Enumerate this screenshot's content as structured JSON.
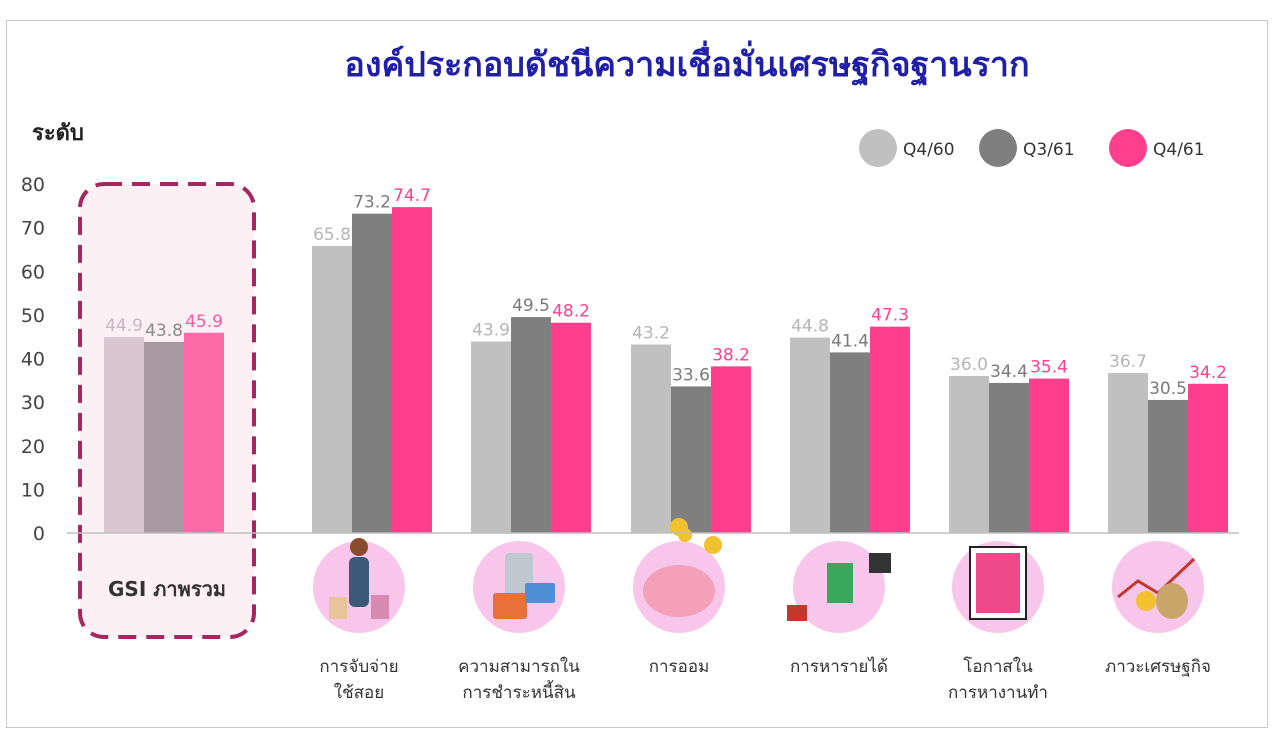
{
  "chart_data": {
    "type": "bar",
    "title": "องค์ประกอบดัชนีความเชื่อมั่นเศรษฐกิจฐานราก",
    "ylabel": "ระดับ",
    "xlabel": "",
    "ylim": [
      0,
      80
    ],
    "yticks": [
      0,
      10,
      20,
      30,
      40,
      50,
      60,
      70,
      80
    ],
    "grid": false,
    "legend_placement": "top-right",
    "categories": [
      [
        "GSI ภาพรวม"
      ],
      [
        "การจับจ่าย",
        "ใช้สอย"
      ],
      [
        "ความสามารถใน",
        "การชำระหนี้สิน"
      ],
      [
        "การออม"
      ],
      [
        "การหารายได้"
      ],
      [
        "โอกาสใน",
        "การหางานทำ"
      ],
      [
        "ภาวะเศรษฐกิจ"
      ]
    ],
    "series": [
      {
        "name": "Q4/60",
        "color": "#c0c0c0",
        "values": [
          44.9,
          65.8,
          43.9,
          43.2,
          44.8,
          36.0,
          36.7
        ],
        "labels": [
          "44.9",
          "65.8",
          "43.9",
          "43.2",
          "44.8",
          "36.0",
          "36.7"
        ]
      },
      {
        "name": "Q3/61",
        "color": "#7f7f7f",
        "values": [
          43.8,
          73.2,
          49.5,
          33.6,
          41.4,
          34.4,
          30.5
        ],
        "labels": [
          "43.8",
          "73.2",
          "49.5",
          "33.6",
          "41.4",
          "34.4",
          "30.5"
        ]
      },
      {
        "name": "Q4/61",
        "color": "#ff3f8e",
        "values": [
          45.9,
          74.7,
          48.2,
          38.2,
          47.3,
          35.4,
          34.2
        ],
        "labels": [
          "45.9",
          "74.7",
          "48.2",
          "38.2",
          "47.3",
          "35.4",
          "34.2"
        ]
      }
    ],
    "highlight": {
      "category_index": 0,
      "bar_colors": [
        "#d9c6cf",
        "#a99aa2",
        "#ff6aa8"
      ],
      "label_colors": [
        "#c9b5bf",
        "#8a8a8a",
        "#ff5a9e"
      ],
      "box_border_color": "#a3285f",
      "box_fill_color": "#fdf0f5"
    },
    "label_colors": [
      "#b5b5b5",
      "#7a7a7a",
      "#ff3f8e"
    ],
    "icons": [
      "shopper-icon",
      "mobile-payment-icon",
      "piggy-bank-icon",
      "money-hands-icon",
      "job-search-icon",
      "economy-trend-icon"
    ]
  },
  "colors": {
    "title": "#1f1fa8",
    "icon_circle": "#f7c6ea"
  }
}
